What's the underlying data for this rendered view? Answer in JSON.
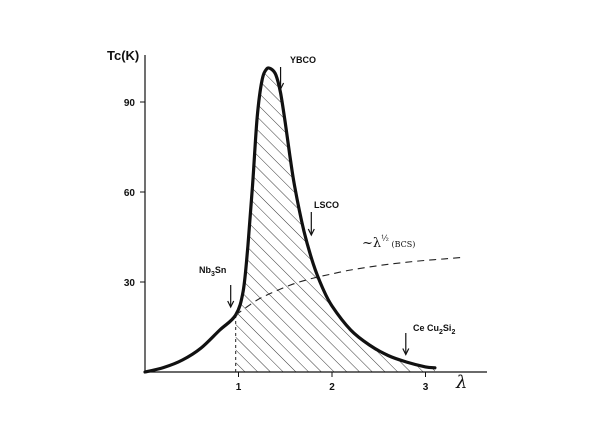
{
  "chart_data": {
    "type": "line",
    "title": "",
    "xlabel": "λ",
    "ylabel": "Tc(K)",
    "xlim": [
      0,
      3.5
    ],
    "ylim": [
      0,
      105
    ],
    "x_ticks": [
      1,
      2,
      3
    ],
    "y_ticks": [
      30,
      60,
      90
    ],
    "tick_labels": {
      "x": [
        "1",
        "2",
        "3"
      ],
      "y": [
        "30",
        "60",
        "90"
      ]
    },
    "grid": false,
    "series": [
      {
        "name": "",
        "style": "solid",
        "x": [
          0,
          0.2,
          0.4,
          0.6,
          0.8,
          0.97,
          1.05,
          1.1,
          1.15,
          1.2,
          1.25,
          1.3,
          1.35,
          1.4,
          1.45,
          1.5,
          1.55,
          1.6,
          1.7,
          1.8,
          1.9,
          2.0,
          2.2,
          2.4,
          2.6,
          2.8,
          3.0,
          3.1
        ],
        "y": [
          0,
          1.5,
          4,
          8,
          14,
          19,
          27,
          42,
          62,
          85,
          97,
          101,
          101,
          99,
          93,
          83,
          72,
          62,
          47,
          36,
          28,
          22,
          14,
          9,
          5.5,
          3.3,
          1.7,
          1.4
        ]
      },
      {
        "name": "~λ½ (BCS)",
        "style": "dashed",
        "x": [
          0.97,
          1.2,
          1.4,
          1.6,
          1.8,
          2.0,
          2.2,
          2.4,
          2.6,
          2.8,
          3.0,
          3.2,
          3.4
        ],
        "y": [
          19,
          24,
          27,
          29.5,
          31.3,
          32.7,
          34,
          35,
          35.9,
          36.6,
          37.2,
          37.7,
          38.2
        ]
      }
    ],
    "annotations": [
      {
        "label": "YBCO",
        "x": 1.45,
        "y": 93
      },
      {
        "label": "LSCO",
        "x": 1.8,
        "y": 45
      },
      {
        "label": "Nb3Sn",
        "x": 0.97,
        "y": 19
      },
      {
        "label": "CeCu2Si2",
        "x": 2.8,
        "y": 4.5
      }
    ],
    "bcs_label": "~λ½ (BCS)",
    "shaded_region": "hatched area between the Tc curve and the λ axis for λ ≥ 1",
    "vertical_reference": {
      "x": 0.97,
      "style": "dashed"
    }
  }
}
